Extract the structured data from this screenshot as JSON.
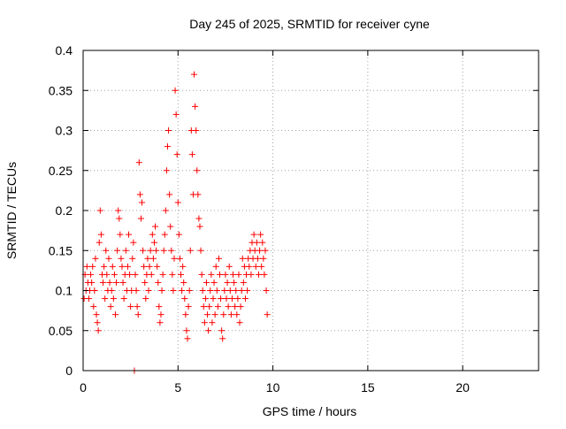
{
  "chart_data": {
    "type": "scatter",
    "title": "Day 245 of 2025, SRMTID for receiver cyne",
    "xlabel": "GPS time / hours",
    "ylabel": "SRMTID / TECUs",
    "xlim": [
      0,
      24
    ],
    "ylim": [
      0,
      0.4
    ],
    "xticks": [
      0,
      5,
      10,
      15,
      20
    ],
    "xtick_labels": [
      "0",
      "5",
      "10",
      "15",
      "20"
    ],
    "yticks": [
      0,
      0.05,
      0.1,
      0.15,
      0.2,
      0.25,
      0.3,
      0.35,
      0.4
    ],
    "ytick_labels": [
      "0",
      "0.05",
      "0.1",
      "0.15",
      "0.2",
      "0.25",
      "0.3",
      "0.35",
      "0.4"
    ],
    "grid": true,
    "marker": "plus",
    "color": "#ff0000",
    "series": [
      {
        "name": "SRMTID",
        "points": [
          [
            0.05,
            0.09
          ],
          [
            0.1,
            0.12
          ],
          [
            0.15,
            0.1
          ],
          [
            0.2,
            0.13
          ],
          [
            0.25,
            0.11
          ],
          [
            0.3,
            0.09
          ],
          [
            0.35,
            0.1
          ],
          [
            0.4,
            0.12
          ],
          [
            0.45,
            0.11
          ],
          [
            0.5,
            0.13
          ],
          [
            0.55,
            0.08
          ],
          [
            0.6,
            0.1
          ],
          [
            0.65,
            0.14
          ],
          [
            0.7,
            0.07
          ],
          [
            0.75,
            0.06
          ],
          [
            0.8,
            0.05
          ],
          [
            0.85,
            0.16
          ],
          [
            0.9,
            0.2
          ],
          [
            0.95,
            0.17
          ],
          [
            1.0,
            0.12
          ],
          [
            1.05,
            0.11
          ],
          [
            1.1,
            0.13
          ],
          [
            1.15,
            0.09
          ],
          [
            1.2,
            0.15
          ],
          [
            1.25,
            0.12
          ],
          [
            1.3,
            0.1
          ],
          [
            1.35,
            0.14
          ],
          [
            1.4,
            0.11
          ],
          [
            1.45,
            0.08
          ],
          [
            1.5,
            0.1
          ],
          [
            1.55,
            0.13
          ],
          [
            1.6,
            0.09
          ],
          [
            1.65,
            0.12
          ],
          [
            1.7,
            0.07
          ],
          [
            1.75,
            0.11
          ],
          [
            1.8,
            0.15
          ],
          [
            1.85,
            0.2
          ],
          [
            1.9,
            0.19
          ],
          [
            1.95,
            0.17
          ],
          [
            2.0,
            0.14
          ],
          [
            2.05,
            0.13
          ],
          [
            2.1,
            0.11
          ],
          [
            2.15,
            0.09
          ],
          [
            2.2,
            0.12
          ],
          [
            2.25,
            0.15
          ],
          [
            2.3,
            0.1
          ],
          [
            2.35,
            0.13
          ],
          [
            2.4,
            0.17
          ],
          [
            2.45,
            0.12
          ],
          [
            2.5,
            0.08
          ],
          [
            2.55,
            0.1
          ],
          [
            2.6,
            0.14
          ],
          [
            2.65,
            0.16
          ],
          [
            2.7,
            0.0
          ],
          [
            2.75,
            0.12
          ],
          [
            2.8,
            0.1
          ],
          [
            2.85,
            0.08
          ],
          [
            2.9,
            0.07
          ],
          [
            2.95,
            0.26
          ],
          [
            3.0,
            0.22
          ],
          [
            3.05,
            0.19
          ],
          [
            3.1,
            0.21
          ],
          [
            3.15,
            0.15
          ],
          [
            3.2,
            0.13
          ],
          [
            3.25,
            0.11
          ],
          [
            3.3,
            0.09
          ],
          [
            3.35,
            0.12
          ],
          [
            3.4,
            0.14
          ],
          [
            3.45,
            0.1
          ],
          [
            3.5,
            0.13
          ],
          [
            3.55,
            0.15
          ],
          [
            3.6,
            0.12
          ],
          [
            3.65,
            0.17
          ],
          [
            3.7,
            0.14
          ],
          [
            3.75,
            0.16
          ],
          [
            3.8,
            0.18
          ],
          [
            3.85,
            0.15
          ],
          [
            3.9,
            0.13
          ],
          [
            3.95,
            0.11
          ],
          [
            4.0,
            0.08
          ],
          [
            4.05,
            0.06
          ],
          [
            4.1,
            0.07
          ],
          [
            4.15,
            0.1
          ],
          [
            4.2,
            0.12
          ],
          [
            4.25,
            0.15
          ],
          [
            4.3,
            0.17
          ],
          [
            4.35,
            0.2
          ],
          [
            4.4,
            0.25
          ],
          [
            4.45,
            0.28
          ],
          [
            4.5,
            0.3
          ],
          [
            4.55,
            0.22
          ],
          [
            4.6,
            0.18
          ],
          [
            4.65,
            0.15
          ],
          [
            4.7,
            0.12
          ],
          [
            4.75,
            0.1
          ],
          [
            4.8,
            0.14
          ],
          [
            4.85,
            0.35
          ],
          [
            4.9,
            0.32
          ],
          [
            4.95,
            0.27
          ],
          [
            5.0,
            0.21
          ],
          [
            5.05,
            0.17
          ],
          [
            5.1,
            0.14
          ],
          [
            5.15,
            0.12
          ],
          [
            5.2,
            0.1
          ],
          [
            5.25,
            0.13
          ],
          [
            5.3,
            0.11
          ],
          [
            5.35,
            0.09
          ],
          [
            5.4,
            0.07
          ],
          [
            5.45,
            0.05
          ],
          [
            5.5,
            0.04
          ],
          [
            5.55,
            0.08
          ],
          [
            5.6,
            0.1
          ],
          [
            5.65,
            0.15
          ],
          [
            5.7,
            0.3
          ],
          [
            5.75,
            0.27
          ],
          [
            5.8,
            0.22
          ],
          [
            5.85,
            0.37
          ],
          [
            5.9,
            0.33
          ],
          [
            5.95,
            0.3
          ],
          [
            6.0,
            0.25
          ],
          [
            6.05,
            0.22
          ],
          [
            6.1,
            0.19
          ],
          [
            6.15,
            0.18
          ],
          [
            6.2,
            0.15
          ],
          [
            6.25,
            0.12
          ],
          [
            6.3,
            0.1
          ],
          [
            6.35,
            0.08
          ],
          [
            6.4,
            0.06
          ],
          [
            6.45,
            0.09
          ],
          [
            6.5,
            0.11
          ],
          [
            6.55,
            0.07
          ],
          [
            6.6,
            0.05
          ],
          [
            6.65,
            0.08
          ],
          [
            6.7,
            0.1
          ],
          [
            6.75,
            0.12
          ],
          [
            6.8,
            0.06
          ],
          [
            6.85,
            0.09
          ],
          [
            6.9,
            0.11
          ],
          [
            6.95,
            0.07
          ],
          [
            7.0,
            0.13
          ],
          [
            7.05,
            0.1
          ],
          [
            7.1,
            0.08
          ],
          [
            7.15,
            0.14
          ],
          [
            7.2,
            0.12
          ],
          [
            7.25,
            0.09
          ],
          [
            7.3,
            0.05
          ],
          [
            7.35,
            0.04
          ],
          [
            7.4,
            0.07
          ],
          [
            7.45,
            0.1
          ],
          [
            7.5,
            0.12
          ],
          [
            7.55,
            0.09
          ],
          [
            7.6,
            0.11
          ],
          [
            7.65,
            0.08
          ],
          [
            7.7,
            0.13
          ],
          [
            7.75,
            0.1
          ],
          [
            7.8,
            0.07
          ],
          [
            7.85,
            0.09
          ],
          [
            7.9,
            0.12
          ],
          [
            7.95,
            0.11
          ],
          [
            8.0,
            0.08
          ],
          [
            8.05,
            0.1
          ],
          [
            8.1,
            0.07
          ],
          [
            8.15,
            0.09
          ],
          [
            8.2,
            0.12
          ],
          [
            8.25,
            0.06
          ],
          [
            8.3,
            0.08
          ],
          [
            8.35,
            0.1
          ],
          [
            8.4,
            0.14
          ],
          [
            8.45,
            0.11
          ],
          [
            8.5,
            0.13
          ],
          [
            8.55,
            0.09
          ],
          [
            8.6,
            0.12
          ],
          [
            8.65,
            0.1
          ],
          [
            8.7,
            0.14
          ],
          [
            8.75,
            0.13
          ],
          [
            8.8,
            0.15
          ],
          [
            8.85,
            0.12
          ],
          [
            8.9,
            0.16
          ],
          [
            8.95,
            0.14
          ],
          [
            9.0,
            0.17
          ],
          [
            9.05,
            0.15
          ],
          [
            9.1,
            0.13
          ],
          [
            9.15,
            0.16
          ],
          [
            9.2,
            0.14
          ],
          [
            9.25,
            0.12
          ],
          [
            9.3,
            0.15
          ],
          [
            9.35,
            0.17
          ],
          [
            9.4,
            0.13
          ],
          [
            9.45,
            0.16
          ],
          [
            9.5,
            0.14
          ],
          [
            9.55,
            0.12
          ],
          [
            9.6,
            0.15
          ],
          [
            9.65,
            0.1
          ],
          [
            9.7,
            0.07
          ]
        ]
      }
    ]
  }
}
